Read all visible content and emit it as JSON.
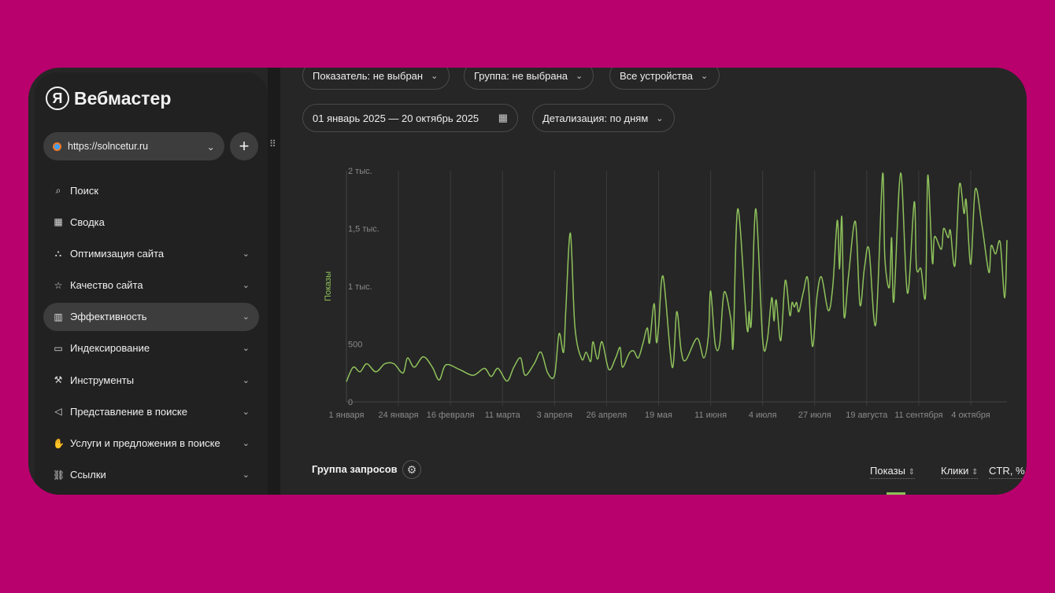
{
  "colors": {
    "background": "#b8016d",
    "panel": "#262626",
    "line": "#8fc25b"
  },
  "sidebar": {
    "logo_text": "Вебмастер",
    "logo_letter": "Я",
    "site": "https://solncetur.ru",
    "items": [
      {
        "label": "Поиск",
        "icon": "search-icon",
        "expandable": false
      },
      {
        "label": "Сводка",
        "icon": "grid-icon",
        "expandable": false
      },
      {
        "label": "Оптимизация сайта",
        "icon": "sitemap-icon",
        "expandable": true
      },
      {
        "label": "Качество сайта",
        "icon": "star-icon",
        "expandable": true
      },
      {
        "label": "Эффективность",
        "icon": "bar-chart-icon",
        "expandable": true,
        "active": true
      },
      {
        "label": "Индексирование",
        "icon": "monitor-icon",
        "expandable": true
      },
      {
        "label": "Инструменты",
        "icon": "wrench-icon",
        "expandable": true
      },
      {
        "label": "Представление в поиске",
        "icon": "megaphone-icon",
        "expandable": true
      },
      {
        "label": "Услуги и предложения в поиске",
        "icon": "hand-icon",
        "expandable": true
      },
      {
        "label": "Ссылки",
        "icon": "link-icon",
        "expandable": true
      }
    ]
  },
  "filters": {
    "indicator": "Показатель: не выбран",
    "group": "Группа: не выбрана",
    "devices": "Все устройства",
    "date_range": "01 январь 2025 — 20 октябрь 2025",
    "detail": "Детализация: по дням"
  },
  "chart_data": {
    "type": "line",
    "ylabel": "Показы",
    "ylim": [
      0,
      2000
    ],
    "yticks": [
      {
        "v": 0,
        "label": "0"
      },
      {
        "v": 500,
        "label": "500"
      },
      {
        "v": 1000,
        "label": "1 тыс."
      },
      {
        "v": 1500,
        "label": "1,5 тыс."
      },
      {
        "v": 2000,
        "label": "2 тыс."
      }
    ],
    "xlim": [
      "2025-01-01",
      "2025-10-20"
    ],
    "xticks": [
      {
        "d": "2025-01-01",
        "label": "1 января"
      },
      {
        "d": "2025-01-24",
        "label": "24 января"
      },
      {
        "d": "2025-02-16",
        "label": "16 февраля"
      },
      {
        "d": "2025-03-11",
        "label": "11 марта"
      },
      {
        "d": "2025-04-03",
        "label": "3 апреля"
      },
      {
        "d": "2025-04-26",
        "label": "26 апреля"
      },
      {
        "d": "2025-05-19",
        "label": "19 мая"
      },
      {
        "d": "2025-06-11",
        "label": "11 июня"
      },
      {
        "d": "2025-07-04",
        "label": "4 июля"
      },
      {
        "d": "2025-07-27",
        "label": "27 июля"
      },
      {
        "d": "2025-08-19",
        "label": "19 августа"
      },
      {
        "d": "2025-09-11",
        "label": "11 сентября"
      },
      {
        "d": "2025-10-04",
        "label": "4 октября"
      }
    ],
    "grid": true,
    "series": [
      {
        "points": [
          [
            "2025-01-01",
            175
          ],
          [
            "2025-01-04",
            300
          ],
          [
            "2025-01-07",
            260
          ],
          [
            "2025-01-10",
            330
          ],
          [
            "2025-01-14",
            260
          ],
          [
            "2025-01-18",
            330
          ],
          [
            "2025-01-22",
            330
          ],
          [
            "2025-01-26",
            250
          ],
          [
            "2025-01-28",
            380
          ],
          [
            "2025-01-31",
            300
          ],
          [
            "2025-02-04",
            390
          ],
          [
            "2025-02-08",
            300
          ],
          [
            "2025-02-11",
            190
          ],
          [
            "2025-02-14",
            320
          ],
          [
            "2025-02-20",
            280
          ],
          [
            "2025-02-26",
            230
          ],
          [
            "2025-03-03",
            290
          ],
          [
            "2025-03-06",
            220
          ],
          [
            "2025-03-09",
            290
          ],
          [
            "2025-03-13",
            180
          ],
          [
            "2025-03-16",
            300
          ],
          [
            "2025-03-19",
            380
          ],
          [
            "2025-03-21",
            230
          ],
          [
            "2025-03-25",
            330
          ],
          [
            "2025-03-28",
            430
          ],
          [
            "2025-03-31",
            250
          ],
          [
            "2025-04-03",
            230
          ],
          [
            "2025-04-05",
            590
          ],
          [
            "2025-04-07",
            430
          ],
          [
            "2025-04-08",
            800
          ],
          [
            "2025-04-10",
            1460
          ],
          [
            "2025-04-12",
            650
          ],
          [
            "2025-04-15",
            370
          ],
          [
            "2025-04-17",
            430
          ],
          [
            "2025-04-19",
            350
          ],
          [
            "2025-04-20",
            520
          ],
          [
            "2025-04-22",
            370
          ],
          [
            "2025-04-24",
            520
          ],
          [
            "2025-04-27",
            280
          ],
          [
            "2025-04-30",
            380
          ],
          [
            "2025-05-02",
            470
          ],
          [
            "2025-05-03",
            300
          ],
          [
            "2025-05-06",
            420
          ],
          [
            "2025-05-08",
            440
          ],
          [
            "2025-05-10",
            380
          ],
          [
            "2025-05-12",
            500
          ],
          [
            "2025-05-14",
            640
          ],
          [
            "2025-05-15",
            510
          ],
          [
            "2025-05-17",
            850
          ],
          [
            "2025-05-18",
            520
          ],
          [
            "2025-05-19",
            650
          ],
          [
            "2025-05-21",
            1085
          ],
          [
            "2025-05-25",
            300
          ],
          [
            "2025-05-27",
            780
          ],
          [
            "2025-05-29",
            440
          ],
          [
            "2025-05-31",
            360
          ],
          [
            "2025-06-05",
            550
          ],
          [
            "2025-06-08",
            380
          ],
          [
            "2025-06-10",
            570
          ],
          [
            "2025-06-11",
            960
          ],
          [
            "2025-06-13",
            500
          ],
          [
            "2025-06-15",
            500
          ],
          [
            "2025-06-17",
            950
          ],
          [
            "2025-06-20",
            710
          ],
          [
            "2025-06-21",
            500
          ],
          [
            "2025-06-23",
            1670
          ],
          [
            "2025-06-27",
            650
          ],
          [
            "2025-06-28",
            780
          ],
          [
            "2025-06-29",
            690
          ],
          [
            "2025-07-01",
            1670
          ],
          [
            "2025-07-04",
            540
          ],
          [
            "2025-07-06",
            530
          ],
          [
            "2025-07-08",
            900
          ],
          [
            "2025-07-09",
            700
          ],
          [
            "2025-07-10",
            880
          ],
          [
            "2025-07-12",
            530
          ],
          [
            "2025-07-14",
            1050
          ],
          [
            "2025-07-16",
            750
          ],
          [
            "2025-07-17",
            860
          ],
          [
            "2025-07-18",
            820
          ],
          [
            "2025-07-19",
            860
          ],
          [
            "2025-07-20",
            780
          ],
          [
            "2025-07-22",
            950
          ],
          [
            "2025-07-24",
            1060
          ],
          [
            "2025-07-26",
            480
          ],
          [
            "2025-07-28",
            910
          ],
          [
            "2025-07-30",
            1080
          ],
          [
            "2025-08-02",
            790
          ],
          [
            "2025-08-04",
            1000
          ],
          [
            "2025-08-06",
            1570
          ],
          [
            "2025-08-07",
            1150
          ],
          [
            "2025-08-08",
            1600
          ],
          [
            "2025-08-09",
            740
          ],
          [
            "2025-08-11",
            1100
          ],
          [
            "2025-08-14",
            1560
          ],
          [
            "2025-08-16",
            840
          ],
          [
            "2025-08-18",
            1160
          ],
          [
            "2025-08-20",
            1320
          ],
          [
            "2025-08-23",
            670
          ],
          [
            "2025-08-26",
            1970
          ],
          [
            "2025-08-27",
            1250
          ],
          [
            "2025-08-29",
            990
          ],
          [
            "2025-08-30",
            1420
          ],
          [
            "2025-08-31",
            870
          ],
          [
            "2025-09-03",
            1980
          ],
          [
            "2025-09-06",
            940
          ],
          [
            "2025-09-09",
            1730
          ],
          [
            "2025-09-10",
            1160
          ],
          [
            "2025-09-12",
            1150
          ],
          [
            "2025-09-14",
            920
          ],
          [
            "2025-09-15",
            1960
          ],
          [
            "2025-09-17",
            1210
          ],
          [
            "2025-09-18",
            1430
          ],
          [
            "2025-09-21",
            1320
          ],
          [
            "2025-09-22",
            1500
          ],
          [
            "2025-09-24",
            1420
          ],
          [
            "2025-09-25",
            1480
          ],
          [
            "2025-09-27",
            1180
          ],
          [
            "2025-09-29",
            1880
          ],
          [
            "2025-10-01",
            1630
          ],
          [
            "2025-10-02",
            1740
          ],
          [
            "2025-10-04",
            1190
          ],
          [
            "2025-10-06",
            1840
          ],
          [
            "2025-10-09",
            1520
          ],
          [
            "2025-10-12",
            1120
          ],
          [
            "2025-10-13",
            1350
          ],
          [
            "2025-10-15",
            1280
          ],
          [
            "2025-10-17",
            1380
          ],
          [
            "2025-10-19",
            900
          ],
          [
            "2025-10-20",
            1400
          ]
        ]
      }
    ]
  },
  "table": {
    "title": "Группа запросов",
    "columns": [
      "Показы",
      "Клики",
      "CTR, %"
    ]
  }
}
